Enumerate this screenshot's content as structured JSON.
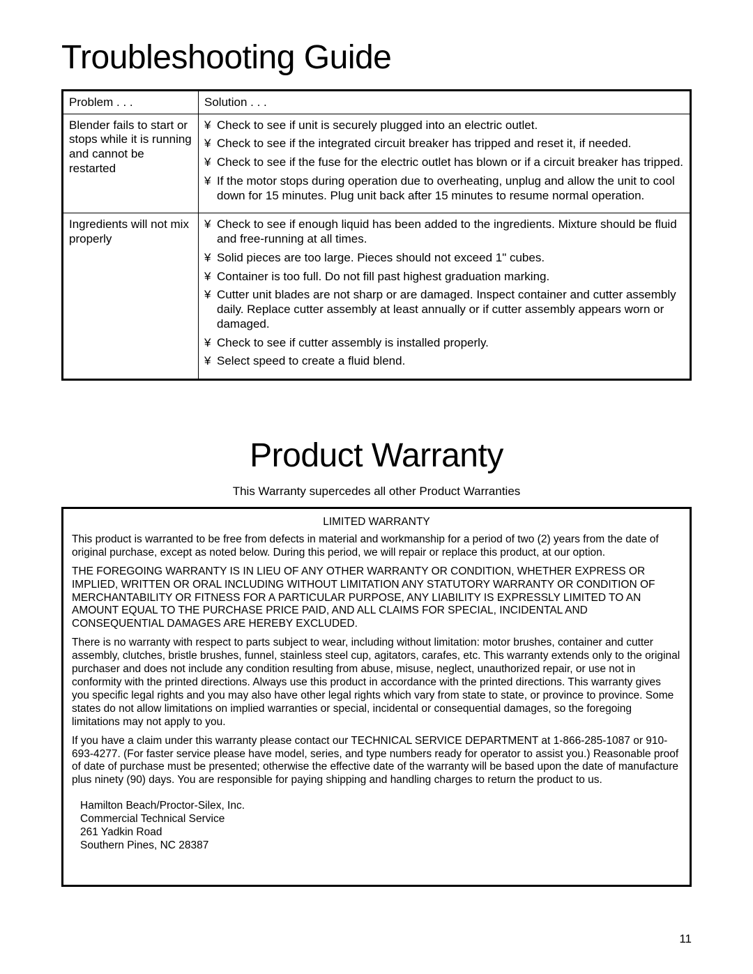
{
  "page_number": "11",
  "troubleshooting": {
    "title": "Troubleshooting Guide",
    "header_problem": "Problem . . .",
    "header_solution": "Solution . . .",
    "rows": [
      {
        "problem": "Blender fails to start or stops while it is running and cannot be restarted",
        "solutions": [
          "Check to see if unit is securely plugged into an electric outlet.",
          "Check to see if the integrated circuit breaker has tripped and reset it, if needed.",
          "Check to see if the fuse for the electric outlet has blown or if a circuit breaker has tripped.",
          "If the motor stops during operation due to overheating, unplug and allow the unit to cool down for 15 minutes. Plug unit back after 15 minutes to resume normal operation."
        ]
      },
      {
        "problem": "Ingredients will not mix properly",
        "solutions": [
          "Check to see if enough liquid has been added to the ingredients. Mixture should be fluid and free-running at all times.",
          "Solid pieces are too large. Pieces should not exceed 1\" cubes.",
          "Container is too full. Do not fill past highest graduation marking.",
          "Cutter unit blades are not sharp or are damaged. Inspect container and cutter assembly daily. Replace cutter assembly at least annually or if cutter assembly appears worn or damaged.",
          "Check to see if cutter assembly is installed properly.",
          "Select speed to create a fluid blend."
        ]
      }
    ]
  },
  "warranty": {
    "title": "Product Warranty",
    "subhead": "This Warranty supercedes all other Product Warranties",
    "box_title": "LIMITED WARRANTY",
    "paragraphs": [
      "This product is warranted to be free from defects in material and workmanship for a period of two (2) years from the date of original purchase, except as noted below. During this period, we will repair or replace this product, at our option.",
      "THE FOREGOING WARRANTY IS IN LIEU OF ANY OTHER WARRANTY OR CONDITION, WHETHER EXPRESS OR IMPLIED, WRITTEN OR ORAL INCLUDING WITHOUT LIMITATION ANY STATUTORY WARRANTY OR CONDITION OF MERCHANTABILITY OR FITNESS FOR A PARTICULAR PURPOSE, ANY LIABILITY IS EXPRESSLY LIMITED TO AN AMOUNT EQUAL TO THE PURCHASE PRICE PAID, AND ALL CLAIMS FOR SPECIAL, INCIDENTAL AND CONSEQUENTIAL DAMAGES ARE HEREBY EXCLUDED.",
      "There is no warranty with respect to parts subject to wear, including without limitation: motor brushes, container and cutter assembly, clutches, bristle brushes, funnel, stainless steel cup, agitators, carafes, etc. This warranty extends only to the original purchaser and does not include any condition resulting from abuse, misuse, neglect, unauthorized repair, or use not in conformity with the printed directions. Always use this product in accordance with the printed directions. This warranty gives you specific legal rights and you may also have other legal rights which vary from state to state, or province to province. Some states do not allow limitations on implied warranties or special, incidental or consequential damages, so the foregoing limitations may not apply to you.",
      "If you have a claim under this warranty please contact our TECHNICAL SERVICE DEPARTMENT at 1-866-285-1087 or 910-693-4277. (For faster service please have model, series, and type numbers ready for operator to assist you.) Reasonable proof of date of purchase must be presented; otherwise the effective date of the warranty will be based upon the date of manufacture plus ninety (90) days. You are responsible for paying shipping and handling charges to return the product to us."
    ],
    "address": [
      "Hamilton Beach/Proctor-Silex, Inc.",
      "Commercial Technical Service",
      "261 Yadkin Road",
      "Southern Pines, NC 28387"
    ]
  }
}
